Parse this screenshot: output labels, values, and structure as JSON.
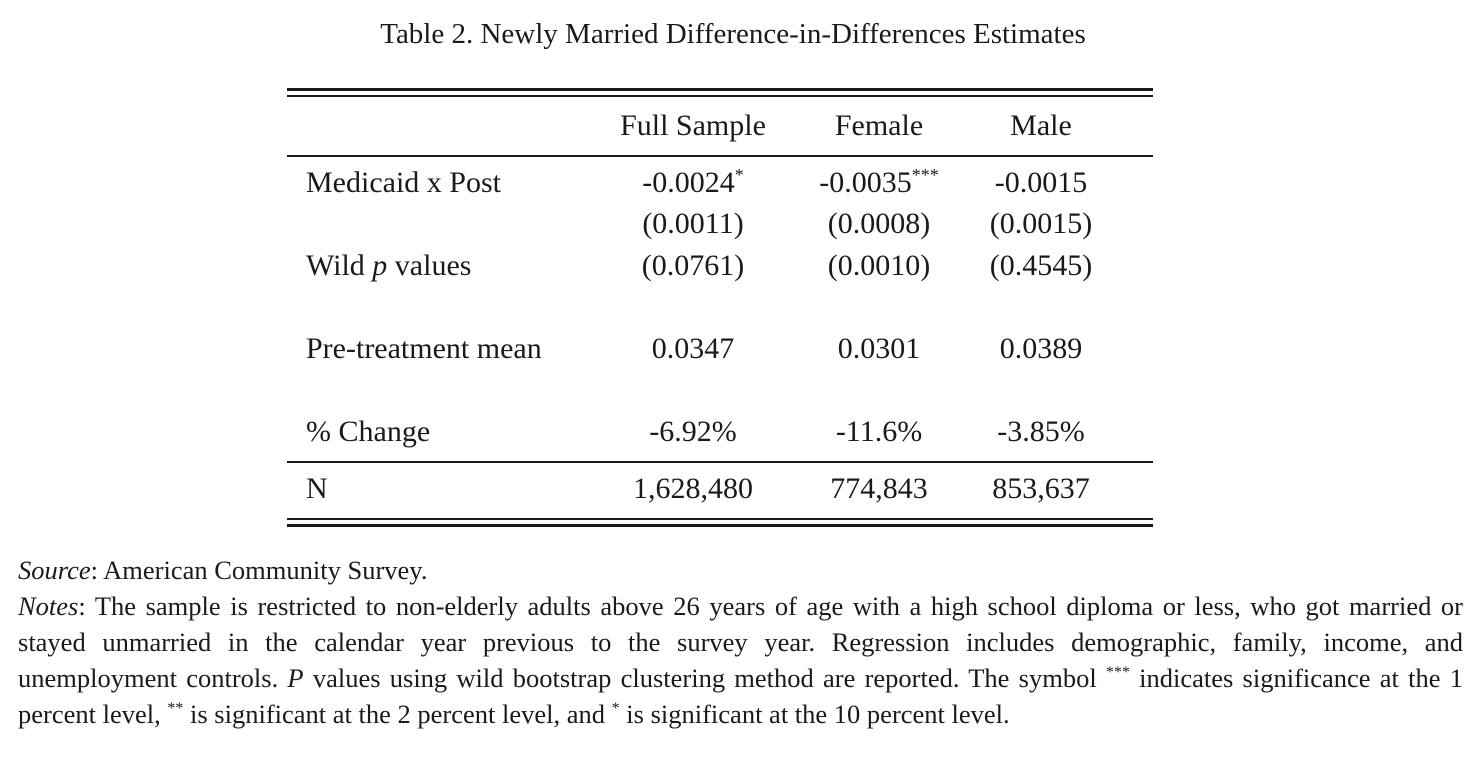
{
  "title": "Table 2. Newly Married Difference-in-Differences Estimates",
  "columns": [
    "Full Sample",
    "Female",
    "Male"
  ],
  "rows": {
    "medicaid_post": {
      "label": "Medicaid x Post",
      "values": [
        "-0.0024",
        "-0.0035",
        "-0.0015"
      ],
      "stars": [
        "*",
        "***",
        ""
      ]
    },
    "standard_errors": {
      "values": [
        "(0.0011)",
        "(0.0008)",
        "(0.0015)"
      ]
    },
    "wild_p": {
      "label_pre": "Wild ",
      "label_italic": "p",
      "label_post": " values",
      "values": [
        "(0.0761)",
        "(0.0010)",
        "(0.4545)"
      ]
    },
    "pre_treatment_mean": {
      "label": "Pre-treatment mean",
      "values": [
        "0.0347",
        "0.0301",
        "0.0389"
      ]
    },
    "pct_change": {
      "label": "% Change",
      "values": [
        "-6.92%",
        "-11.6%",
        "-3.85%"
      ]
    },
    "n": {
      "label": "N",
      "values": [
        "1,628,480",
        "774,843",
        "853,637"
      ]
    }
  },
  "source": {
    "label": "Source",
    "text": ": American Community Survey."
  },
  "notes": {
    "label": "Notes",
    "text_1": ": The sample is restricted to non-elderly adults above 26 years of age with a high school diploma or less, who got married or stayed unmarried in the calendar year previous to the survey year. Regression includes demographic, family, income, and unemployment controls. ",
    "p_italic": "P",
    "text_2": " values using wild bootstrap clustering method are reported. The symbol ",
    "sym_1": "***",
    "text_3": " indicates significance at the 1 percent level, ",
    "sym_2": "**",
    "text_4": " is significant at the 2 percent level, and ",
    "sym_3": "*",
    "text_5": " is significant at the 10 percent level."
  }
}
